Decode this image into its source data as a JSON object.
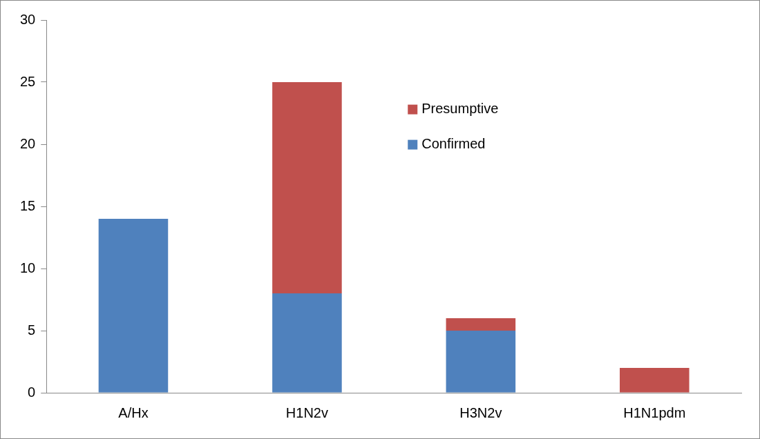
{
  "chart_data": {
    "type": "bar",
    "stacked": true,
    "categories": [
      "A/Hx",
      "H1N2v",
      "H3N2v",
      "H1N1pdm"
    ],
    "series": [
      {
        "name": "Confirmed",
        "color": "#4f81bd",
        "values": [
          14,
          8,
          5,
          0
        ]
      },
      {
        "name": "Presumptive",
        "color": "#c0504d",
        "values": [
          0,
          17,
          1,
          2
        ]
      }
    ],
    "ylim": [
      0,
      30
    ],
    "yticks": [
      0,
      5,
      10,
      15,
      20,
      25,
      30
    ],
    "grid": false,
    "legend": "top"
  }
}
